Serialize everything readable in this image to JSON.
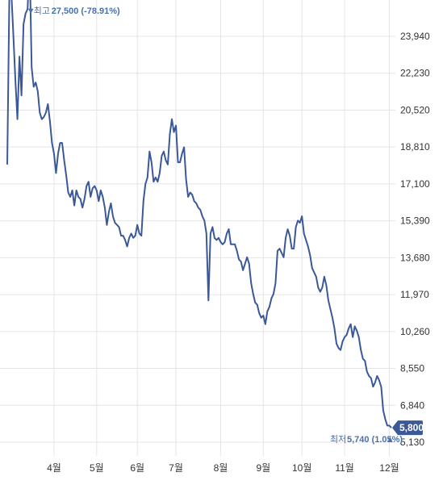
{
  "chart_data": {
    "type": "line",
    "title": "",
    "xlabel": "",
    "ylabel": "",
    "ylim": [
      5130,
      27700
    ],
    "y_ticks": [
      5130,
      6840,
      8550,
      10260,
      11970,
      13680,
      15390,
      17100,
      18810,
      20520,
      22230,
      23940
    ],
    "y_tick_labels": [
      "5,130",
      "6,840",
      "8,550",
      "10,260",
      "11,970",
      "13,680",
      "15,390",
      "17,100",
      "18,810",
      "20,520",
      "22,230",
      "23,940"
    ],
    "x_ticks": [
      {
        "label": "4월",
        "index": 23
      },
      {
        "label": "5월",
        "index": 44
      },
      {
        "label": "6월",
        "index": 64
      },
      {
        "label": "7월",
        "index": 83
      },
      {
        "label": "8월",
        "index": 105
      },
      {
        "label": "9월",
        "index": 126
      },
      {
        "label": "10월",
        "index": 145
      },
      {
        "label": "11월",
        "index": 166
      },
      {
        "label": "12월",
        "index": 188
      }
    ],
    "grid": true,
    "series": [
      {
        "color": "#3b5998",
        "values": [
          18000,
          25600,
          26000,
          24000,
          21900,
          20100,
          23000,
          21200,
          24500,
          25000,
          25200,
          27500,
          22500,
          21600,
          21800,
          21400,
          20400,
          20100,
          20200,
          20400,
          20800,
          20000,
          19000,
          18500,
          17600,
          18500,
          19000,
          19000,
          18200,
          17500,
          16700,
          16500,
          16800,
          16100,
          16800,
          16500,
          16400,
          16000,
          16400,
          17000,
          17200,
          16500,
          16900,
          17000,
          16800,
          16300,
          16800,
          16500,
          16000,
          15200,
          15800,
          16200,
          15600,
          15300,
          15200,
          15100,
          14700,
          14700,
          14500,
          14200,
          14600,
          14800,
          14600,
          14700,
          15200,
          14800,
          14700,
          16300,
          17100,
          17400,
          18600,
          18100,
          17200,
          17400,
          17200,
          17600,
          18400,
          18600,
          18200,
          18000,
          19400,
          20100,
          19500,
          19800,
          18100,
          18100,
          18500,
          18800,
          17300,
          16500,
          16700,
          16600,
          16300,
          16200,
          16000,
          15900,
          15600,
          15400,
          14800,
          11700,
          14800,
          15100,
          14600,
          14500,
          14600,
          14400,
          14300,
          14400,
          14800,
          15000,
          14300,
          14300,
          14300,
          14000,
          13600,
          13500,
          13100,
          13400,
          13700,
          13400,
          12500,
          12000,
          11600,
          11500,
          11100,
          10900,
          11000,
          10600,
          11200,
          11400,
          11800,
          12000,
          12500,
          14000,
          14100,
          13900,
          13700,
          14600,
          15000,
          14700,
          14100,
          14100,
          15100,
          15400,
          15300,
          15600,
          14800,
          14500,
          14200,
          13800,
          13200,
          13000,
          12800,
          12300,
          12100,
          12300,
          12800,
          12400,
          11700,
          11300,
          10900,
          10400,
          9700,
          9500,
          9400,
          9800,
          10000,
          10100,
          10400,
          10600,
          10000,
          10500,
          10300,
          10000,
          9400,
          9000,
          8900,
          8400,
          8200,
          8100,
          7700,
          7900,
          8200,
          8000,
          7700,
          6600,
          6200,
          5900,
          5900,
          5800
        ]
      }
    ],
    "annotations": {
      "high": {
        "value": 27500,
        "index": 11,
        "label": "최고 27,500 (-78.91%)",
        "prefix": "최고",
        "text": "27,500 (-78.91%)"
      },
      "low": {
        "value": 5740,
        "index": 193,
        "label": "최저 5,740 (1.05%)",
        "prefix": "최저",
        "text": "5,740 (1.05%)"
      },
      "current": {
        "value": 5800,
        "label": "5,800"
      }
    }
  },
  "colors": {
    "line": "#3b5998",
    "grid": "#e4e4e4",
    "current_badge": "#3b5998",
    "annotation": "#4a6fb0"
  }
}
